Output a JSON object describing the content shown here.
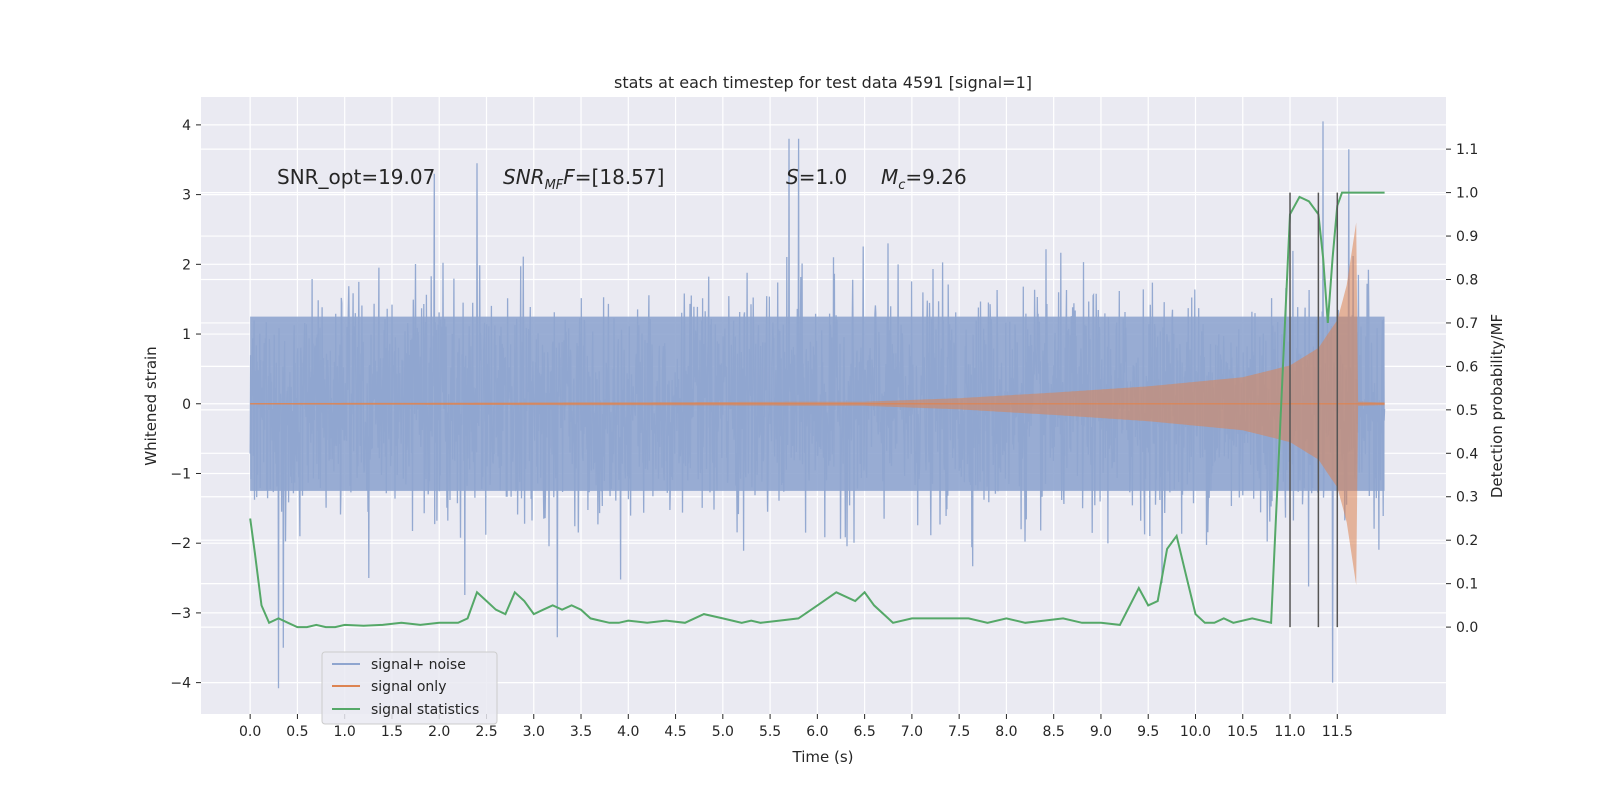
{
  "chart_data": {
    "type": "line",
    "title": "stats at each timestep for test data 4591 [signal=1]",
    "xlabel": "Time (s)",
    "ylabel_left": "Whitened strain",
    "ylabel_right": "Detection probability/MF",
    "xlim": [
      -0.52,
      12.65
    ],
    "ylim_left": [
      -4.45,
      4.4
    ],
    "ylim_right": [
      -0.2,
      1.22
    ],
    "grid": true,
    "legend_placement": "lower-left",
    "x_ticks": [
      "0.0",
      "0.5",
      "1.0",
      "1.5",
      "2.0",
      "2.5",
      "3.0",
      "3.5",
      "4.0",
      "4.5",
      "5.0",
      "5.5",
      "6.0",
      "6.5",
      "7.0",
      "7.5",
      "8.0",
      "8.5",
      "9.0",
      "9.5",
      "10.0",
      "10.5",
      "11.0",
      "11.5"
    ],
    "y_ticks_left": [
      -4,
      -3,
      -2,
      -1,
      0,
      1,
      2,
      3,
      4
    ],
    "y_tick_labels_left": [
      "−4",
      "−3",
      "−2",
      "−1",
      "0",
      "1",
      "2",
      "3",
      "4"
    ],
    "y_ticks_right": [
      0.0,
      0.1,
      0.2,
      0.3,
      0.4,
      0.5,
      0.6,
      0.7,
      0.8,
      0.9,
      1.0,
      1.1
    ],
    "y_tick_labels_right": [
      "0.0",
      "0.1",
      "0.2",
      "0.3",
      "0.4",
      "0.5",
      "0.6",
      "0.7",
      "0.8",
      "0.9",
      "1.0",
      "1.1"
    ],
    "annotations": {
      "snr_opt": "SNR_opt=19.07",
      "snr_mf_base": "SNR",
      "snr_mf_sub": "MF",
      "snr_mf_value": "=[18.57]",
      "s_label": "S",
      "s_value": "=1.0",
      "mc_label": "M",
      "mc_sub": "c",
      "mc_value": "=9.26"
    },
    "vlines_x": [
      11.0,
      11.3,
      11.5
    ],
    "vline_range_right": [
      0.0,
      1.0
    ],
    "series": [
      {
        "name": "signal+ noise",
        "color": "#8fa5cf",
        "x_range": [
          0.0,
          12.0
        ],
        "amplitude_typical": 1.25,
        "amplitude_max": 4.05,
        "peaks": [
          [
            0.3,
            -4.08
          ],
          [
            0.35,
            -3.5
          ],
          [
            1.95,
            3.3
          ],
          [
            2.4,
            3.45
          ],
          [
            3.25,
            -3.35
          ],
          [
            5.7,
            3.8
          ],
          [
            5.8,
            3.8
          ],
          [
            11.35,
            4.05
          ],
          [
            11.45,
            -4.0
          ],
          [
            11.62,
            3.65
          ]
        ]
      },
      {
        "name": "signal only",
        "color": "#dd8452",
        "x_range": [
          0.0,
          12.0
        ],
        "envelope": [
          [
            0.0,
            0.01
          ],
          [
            6.5,
            0.03
          ],
          [
            7.5,
            0.08
          ],
          [
            8.5,
            0.16
          ],
          [
            9.5,
            0.25
          ],
          [
            10.5,
            0.38
          ],
          [
            11.0,
            0.55
          ],
          [
            11.3,
            0.8
          ],
          [
            11.5,
            1.2
          ],
          [
            11.6,
            1.7
          ],
          [
            11.7,
            2.6
          ],
          [
            11.72,
            0.03
          ],
          [
            12.0,
            0.02
          ]
        ]
      },
      {
        "name": "signal statistics",
        "color": "#55a868",
        "axis": "right",
        "x": [
          0.0,
          0.05,
          0.12,
          0.2,
          0.3,
          0.4,
          0.5,
          0.6,
          0.7,
          0.8,
          0.9,
          1.0,
          1.2,
          1.4,
          1.6,
          1.8,
          2.0,
          2.2,
          2.3,
          2.4,
          2.5,
          2.6,
          2.7,
          2.8,
          2.9,
          3.0,
          3.1,
          3.2,
          3.3,
          3.4,
          3.5,
          3.6,
          3.7,
          3.8,
          3.9,
          4.0,
          4.2,
          4.4,
          4.6,
          4.8,
          5.0,
          5.1,
          5.2,
          5.3,
          5.4,
          5.6,
          5.8,
          6.0,
          6.2,
          6.4,
          6.5,
          6.6,
          6.8,
          7.0,
          7.2,
          7.4,
          7.6,
          7.8,
          8.0,
          8.2,
          8.4,
          8.6,
          8.8,
          9.0,
          9.2,
          9.4,
          9.5,
          9.6,
          9.7,
          9.8,
          9.9,
          10.0,
          10.1,
          10.2,
          10.3,
          10.4,
          10.6,
          10.8,
          11.0,
          11.1,
          11.2,
          11.3,
          11.35,
          11.4,
          11.45,
          11.5,
          11.55,
          11.6,
          11.7,
          11.8,
          11.9,
          12.0
        ],
        "y": [
          0.25,
          0.17,
          0.05,
          0.01,
          0.02,
          0.01,
          0.0,
          0.0,
          0.005,
          0.0,
          0.0,
          0.005,
          0.003,
          0.005,
          0.01,
          0.005,
          0.01,
          0.01,
          0.02,
          0.08,
          0.06,
          0.04,
          0.03,
          0.08,
          0.06,
          0.03,
          0.04,
          0.05,
          0.04,
          0.05,
          0.04,
          0.02,
          0.015,
          0.01,
          0.01,
          0.015,
          0.01,
          0.015,
          0.01,
          0.03,
          0.02,
          0.015,
          0.01,
          0.015,
          0.01,
          0.015,
          0.02,
          0.05,
          0.08,
          0.06,
          0.08,
          0.05,
          0.01,
          0.02,
          0.02,
          0.02,
          0.02,
          0.01,
          0.02,
          0.01,
          0.015,
          0.02,
          0.01,
          0.01,
          0.005,
          0.09,
          0.05,
          0.06,
          0.18,
          0.21,
          0.12,
          0.03,
          0.01,
          0.01,
          0.02,
          0.01,
          0.02,
          0.01,
          0.95,
          0.99,
          0.98,
          0.95,
          0.85,
          0.7,
          0.85,
          0.97,
          1.0,
          1.0,
          1.0,
          1.0,
          1.0,
          1.0
        ]
      }
    ]
  }
}
